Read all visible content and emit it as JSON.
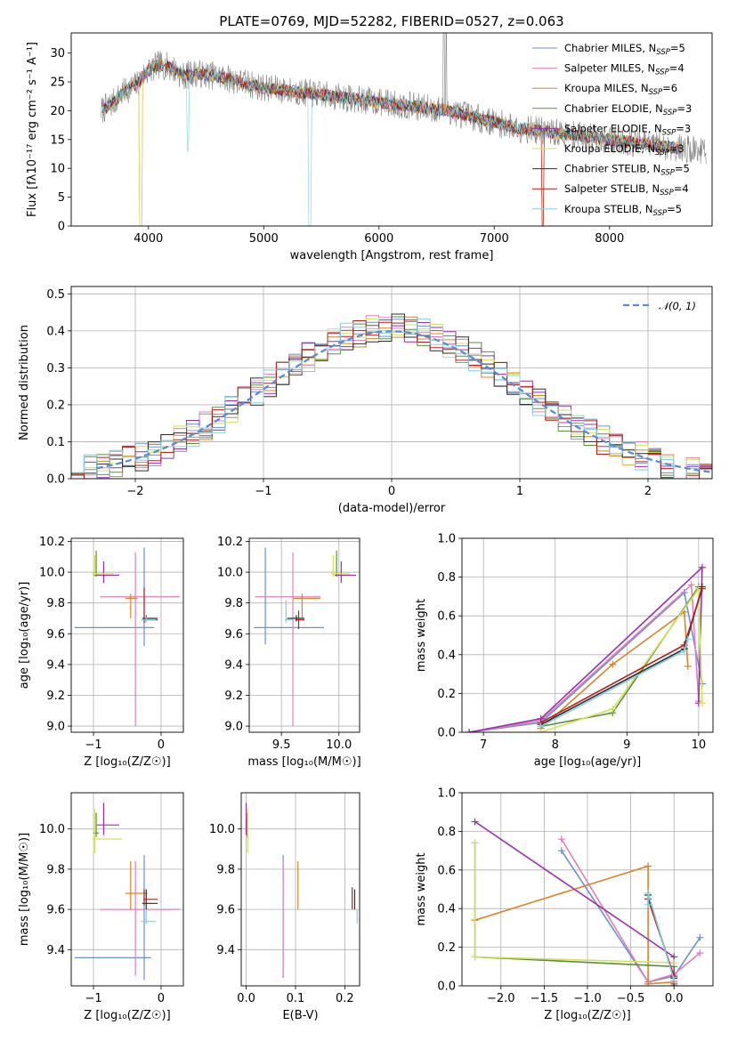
{
  "figure": {
    "title": "PLATE=0769, MJD=52282, FIBERID=0527, z=0.063"
  },
  "colors": {
    "palette": [
      "#6c8fd6",
      "#e07fba",
      "#d7842a",
      "#5a8f3c",
      "#9a2fb0",
      "#d4e157",
      "#2b2b2b",
      "#b51e1e",
      "#7fd0e0"
    ],
    "spectrum_data": "#808080",
    "normal_curve": "#5b8bd0",
    "grid": "#b0b0b0"
  },
  "chart_data": [
    {
      "id": "spectrum",
      "type": "line",
      "title": "PLATE=0769, MJD=52282, FIBERID=0527, z=0.063",
      "xlabel": "wavelength [Angstrom, rest frame]",
      "ylabel": "Flux [fλ10⁻¹⁷ erg cm⁻² s⁻¹ A⁻¹]",
      "xlim": [
        3330,
        8890
      ],
      "ylim": [
        0,
        33.5
      ],
      "xticks": [
        4000,
        5000,
        6000,
        7000,
        8000
      ],
      "yticks": [
        0,
        5,
        10,
        15,
        20,
        25,
        30
      ],
      "grid": false,
      "legend_position": "top-right",
      "continuum": {
        "x": [
          3590,
          3700,
          3800,
          3900,
          3950,
          4000,
          4100,
          4200,
          4300,
          4400,
          4600,
          4800,
          5000,
          5200,
          5400,
          5600,
          5800,
          6000,
          6200,
          6400,
          6600,
          6800,
          7000,
          7200,
          7400,
          7600,
          7800,
          8000,
          8200,
          8400,
          8600,
          8840
        ],
        "y": [
          20,
          21.5,
          23.5,
          24.5,
          26,
          27,
          28,
          27.5,
          26,
          26.5,
          26,
          25,
          24,
          23.5,
          23,
          22.5,
          22,
          21.5,
          21,
          20.5,
          20,
          19,
          18,
          17,
          16.5,
          16,
          15.5,
          15,
          14.5,
          14,
          13.5,
          13
        ]
      },
      "series": [
        {
          "name": "Chabrier MILES, Nₛₛₚ=5",
          "label": "Chabrier MILES, N",
          "sub": "SSP",
          "sup": "=5"
        },
        {
          "name": "Salpeter MILES, Nₛₛₚ=4",
          "label": "Salpeter MILES, N",
          "sub": "SSP",
          "sup": "=4"
        },
        {
          "name": "Kroupa MILES, Nₛₛₚ=6",
          "label": "Kroupa MILES, N",
          "sub": "SSP",
          "sup": "=6"
        },
        {
          "name": "Chabrier ELODIE, Nₛₛₚ=3",
          "label": "Chabrier ELODIE, N",
          "sub": "SSP",
          "sup": "=3"
        },
        {
          "name": "Salpeter ELODIE, Nₛₛₚ=3",
          "label": "Salpeter ELODIE, N",
          "sub": "SSP",
          "sup": "=3"
        },
        {
          "name": "Kroupa ELODIE, Nₛₛₚ=3",
          "label": "Kroupa ELODIE, N",
          "sub": "SSP",
          "sup": "=3"
        },
        {
          "name": "Chabrier STELIB, Nₛₛₚ=5",
          "label": "Chabrier STELIB, N",
          "sub": "SSP",
          "sup": "=5"
        },
        {
          "name": "Salpeter STELIB, Nₛₛₚ=4",
          "label": "Salpeter STELIB, N",
          "sub": "SSP",
          "sup": "=4"
        },
        {
          "name": "Kroupa STELIB, Nₛₛₚ=5",
          "label": "Kroupa STELIB, N",
          "sub": "SSP",
          "sup": "=5"
        }
      ]
    },
    {
      "id": "residuals",
      "type": "line",
      "xlabel": "(data-model)/error",
      "ylabel": "Normed distribution",
      "xlim": [
        -2.5,
        2.5
      ],
      "ylim": [
        0,
        0.52
      ],
      "xticks": [
        -2,
        -1,
        0,
        1,
        2
      ],
      "yticks": [
        0.0,
        0.1,
        0.2,
        0.3,
        0.4,
        0.5
      ],
      "grid": true,
      "legend_position": "top-right",
      "legend": "𝒩(0, 1)",
      "bin_width": 0.1
    },
    {
      "id": "age_vs_Z",
      "type": "scatter",
      "xlabel": "Z [log₁₀(Z/Z☉)]",
      "ylabel": "age  [log₁₀(age/yr)]",
      "xlim": [
        -1.33,
        0.33
      ],
      "ylim": [
        8.96,
        10.22
      ],
      "xticks": [
        -1,
        0
      ],
      "yticks": [
        9.0,
        9.2,
        9.4,
        9.6,
        9.8,
        10.0,
        10.2
      ],
      "grid": true,
      "points": [
        {
          "x": -0.25,
          "y": 9.64,
          "xlo": -1.28,
          "xhi": -0.1,
          "ylo": 9.52,
          "yhi": 10.16
        },
        {
          "x": -0.38,
          "y": 9.84,
          "xlo": -0.9,
          "xhi": 0.28,
          "ylo": 9.0,
          "yhi": 10.13
        },
        {
          "x": -0.45,
          "y": 9.83,
          "xlo": -0.53,
          "xhi": -0.35,
          "ylo": 9.7,
          "yhi": 9.86
        },
        {
          "x": -0.96,
          "y": 9.98,
          "xlo": -1.0,
          "xhi": -0.92,
          "ylo": 9.97,
          "yhi": 10.14
        },
        {
          "x": -0.85,
          "y": 9.98,
          "xlo": -0.95,
          "xhi": -0.62,
          "ylo": 9.93,
          "yhi": 10.07
        },
        {
          "x": -0.98,
          "y": 9.99,
          "xlo": -1.02,
          "xhi": -0.7,
          "ylo": 9.97,
          "yhi": 10.11
        },
        {
          "x": -0.22,
          "y": 9.7,
          "xlo": -0.28,
          "xhi": -0.05,
          "ylo": 9.68,
          "yhi": 9.72
        },
        {
          "x": -0.25,
          "y": 9.69,
          "xlo": -0.26,
          "xhi": -0.05,
          "ylo": 9.67,
          "yhi": 9.9
        },
        {
          "x": -0.22,
          "y": 9.69,
          "xlo": -0.3,
          "xhi": -0.08,
          "ylo": 9.67,
          "yhi": 9.71
        }
      ]
    },
    {
      "id": "age_vs_mass",
      "type": "scatter",
      "xlabel": "mass [log₁₀(M/M☉)]",
      "ylabel": "",
      "xlim": [
        9.22,
        10.18
      ],
      "ylim": [
        8.96,
        10.22
      ],
      "xticks": [
        9.5,
        10.0
      ],
      "yticks": [
        9.0,
        9.2,
        9.4,
        9.6,
        9.8,
        10.0,
        10.2
      ],
      "grid": true,
      "points": [
        {
          "x": 9.36,
          "y": 9.64,
          "xlo": 9.26,
          "xhi": 9.87,
          "ylo": 9.53,
          "yhi": 10.16
        },
        {
          "x": 9.6,
          "y": 9.84,
          "xlo": 9.27,
          "xhi": 9.84,
          "ylo": 9.0,
          "yhi": 10.13
        },
        {
          "x": 9.68,
          "y": 9.83,
          "xlo": 9.6,
          "xhi": 9.84,
          "ylo": 9.7,
          "yhi": 9.86
        },
        {
          "x": 9.98,
          "y": 9.98,
          "xlo": 9.96,
          "xhi": 10.0,
          "ylo": 9.97,
          "yhi": 10.14
        },
        {
          "x": 10.02,
          "y": 9.98,
          "xlo": 9.97,
          "xhi": 10.15,
          "ylo": 9.93,
          "yhi": 10.07
        },
        {
          "x": 9.95,
          "y": 9.99,
          "xlo": 9.93,
          "xhi": 10.1,
          "ylo": 9.97,
          "yhi": 10.11
        },
        {
          "x": 9.63,
          "y": 9.7,
          "xlo": 9.55,
          "xhi": 9.7,
          "ylo": 9.68,
          "yhi": 9.72
        },
        {
          "x": 9.65,
          "y": 9.69,
          "xlo": 9.62,
          "xhi": 9.7,
          "ylo": 9.63,
          "yhi": 9.75
        },
        {
          "x": 9.54,
          "y": 9.69,
          "xlo": 9.53,
          "xhi": 9.6,
          "ylo": 9.67,
          "yhi": 9.82
        }
      ]
    },
    {
      "id": "weight_vs_age",
      "type": "line",
      "xlabel": "age  [log₁₀(age/yr)]",
      "ylabel": "mass weight",
      "xlim": [
        6.7,
        10.2
      ],
      "ylim": [
        0,
        1.0
      ],
      "xticks": [
        7,
        8,
        9,
        10
      ],
      "yticks": [
        0.0,
        0.2,
        0.4,
        0.6,
        0.8,
        1.0
      ],
      "grid": true,
      "series": [
        {
          "x": [
            6.8,
            7.8,
            9.8,
            10.05
          ],
          "y": [
            0.0,
            0.05,
            0.72,
            0.25
          ]
        },
        {
          "x": [
            6.8,
            7.8,
            9.9,
            10.0
          ],
          "y": [
            0.0,
            0.06,
            0.76,
            0.16
          ]
        },
        {
          "x": [
            7.8,
            8.8,
            9.8,
            9.85
          ],
          "y": [
            0.02,
            0.35,
            0.62,
            0.34
          ]
        },
        {
          "x": [
            7.8,
            8.8,
            10.0
          ],
          "y": [
            0.03,
            0.1,
            0.75
          ]
        },
        {
          "x": [
            6.8,
            7.8,
            10.05,
            10.0
          ],
          "y": [
            0.0,
            0.07,
            0.85,
            0.15
          ]
        },
        {
          "x": [
            7.8,
            8.8,
            10.0,
            10.05
          ],
          "y": [
            0.0,
            0.12,
            0.74,
            0.15
          ]
        },
        {
          "x": [
            7.8,
            9.8,
            10.05
          ],
          "y": [
            0.04,
            0.43,
            0.75
          ]
        },
        {
          "x": [
            7.8,
            9.8,
            10.05
          ],
          "y": [
            0.05,
            0.45,
            0.74
          ]
        },
        {
          "x": [
            7.8,
            9.8,
            9.85
          ],
          "y": [
            0.03,
            0.42,
            0.48
          ]
        }
      ]
    },
    {
      "id": "mass_vs_Z",
      "type": "scatter",
      "xlabel": "Z [log₁₀(Z/Z☉)]",
      "ylabel": "mass [log₁₀(M/M☉)]",
      "xlim": [
        -1.33,
        0.33
      ],
      "ylim": [
        9.22,
        10.18
      ],
      "xticks": [
        -1,
        0
      ],
      "yticks": [
        9.4,
        9.6,
        9.8,
        10.0
      ],
      "grid": true,
      "points": [
        {
          "x": -0.25,
          "y": 9.36,
          "xlo": -1.28,
          "xhi": -0.15,
          "ylo": 9.25,
          "yhi": 9.87
        },
        {
          "x": -0.38,
          "y": 9.6,
          "xlo": -0.9,
          "xhi": 0.28,
          "ylo": 9.27,
          "yhi": 9.84
        },
        {
          "x": -0.45,
          "y": 9.68,
          "xlo": -0.53,
          "xhi": -0.2,
          "ylo": 9.6,
          "yhi": 9.84
        },
        {
          "x": -0.96,
          "y": 9.98,
          "xlo": -1.0,
          "xhi": -0.92,
          "ylo": 9.96,
          "yhi": 10.08
        },
        {
          "x": -0.85,
          "y": 10.02,
          "xlo": -0.95,
          "xhi": -0.62,
          "ylo": 9.97,
          "yhi": 10.13
        },
        {
          "x": -0.98,
          "y": 9.95,
          "xlo": -1.02,
          "xhi": -0.58,
          "ylo": 9.88,
          "yhi": 10.1
        },
        {
          "x": -0.22,
          "y": 9.63,
          "xlo": -0.28,
          "xhi": -0.05,
          "ylo": 9.6,
          "yhi": 9.7
        },
        {
          "x": -0.25,
          "y": 9.65,
          "xlo": -0.26,
          "xhi": -0.05,
          "ylo": 9.62,
          "yhi": 9.7
        },
        {
          "x": -0.22,
          "y": 9.54,
          "xlo": -0.3,
          "xhi": -0.08,
          "ylo": 9.53,
          "yhi": 9.6
        }
      ]
    },
    {
      "id": "mass_vs_EBV",
      "type": "scatter",
      "xlabel": "E(B-V)",
      "ylabel": "",
      "xlim": [
        -0.01,
        0.23
      ],
      "ylim": [
        9.22,
        10.18
      ],
      "xticks": [
        0.0,
        0.1,
        0.2
      ],
      "yticks": [
        9.4,
        9.6,
        9.8,
        10.0
      ],
      "grid": true,
      "points": [
        {
          "x": 0.075,
          "y": 9.56,
          "xlo": 0.075,
          "xhi": 0.075,
          "ylo": 9.26,
          "yhi": 9.87
        },
        {
          "x": 0.075,
          "y": 9.6,
          "xlo": 0.075,
          "xhi": 0.075,
          "ylo": 9.27,
          "yhi": 9.84
        },
        {
          "x": 0.105,
          "y": 9.68,
          "xlo": 0.105,
          "xhi": 0.105,
          "ylo": 9.6,
          "yhi": 9.84
        },
        {
          "x": 0.002,
          "y": 9.98,
          "xlo": 0.002,
          "xhi": 0.002,
          "ylo": 9.96,
          "yhi": 10.08
        },
        {
          "x": 0.0,
          "y": 10.02,
          "xlo": 0.0,
          "xhi": 0.0,
          "ylo": 9.97,
          "yhi": 10.13
        },
        {
          "x": 0.003,
          "y": 9.95,
          "xlo": 0.003,
          "xhi": 0.003,
          "ylo": 9.88,
          "yhi": 10.1
        },
        {
          "x": 0.22,
          "y": 9.63,
          "xlo": 0.22,
          "xhi": 0.22,
          "ylo": 9.6,
          "yhi": 9.7
        },
        {
          "x": 0.215,
          "y": 9.65,
          "xlo": 0.215,
          "xhi": 0.215,
          "ylo": 9.6,
          "yhi": 9.71
        },
        {
          "x": 0.225,
          "y": 9.56,
          "xlo": 0.225,
          "xhi": 0.225,
          "ylo": 9.53,
          "yhi": 9.6
        }
      ]
    },
    {
      "id": "weight_vs_Z",
      "type": "line",
      "xlabel": "Z [log₁₀(Z/Z☉)]",
      "ylabel": "mass weight",
      "xlim": [
        -2.45,
        0.45
      ],
      "ylim": [
        0,
        1.0
      ],
      "xticks": [
        -2.0,
        -1.5,
        -1.0,
        -0.5,
        0.0
      ],
      "yticks": [
        0.0,
        0.2,
        0.4,
        0.6,
        0.8,
        1.0
      ],
      "grid": true,
      "series": [
        {
          "x": [
            -1.3,
            -0.3,
            0.0,
            0.3
          ],
          "y": [
            0.7,
            0.02,
            0.05,
            0.25
          ]
        },
        {
          "x": [
            -1.3,
            -0.3,
            0.0,
            0.3
          ],
          "y": [
            0.76,
            0.02,
            0.06,
            0.17
          ]
        },
        {
          "x": [
            -2.3,
            -0.3,
            -0.3,
            0.0
          ],
          "y": [
            0.34,
            0.62,
            0.01,
            0.02
          ]
        },
        {
          "x": [
            -2.3,
            -2.3,
            0.0
          ],
          "y": [
            0.74,
            0.15,
            0.1
          ]
        },
        {
          "x": [
            -2.3,
            0.0,
            0.0
          ],
          "y": [
            0.85,
            0.15,
            0.01
          ]
        },
        {
          "x": [
            -2.3,
            -2.3,
            0.0
          ],
          "y": [
            0.74,
            0.15,
            0.12
          ]
        },
        {
          "x": [
            -0.3,
            0.0,
            0.0
          ],
          "y": [
            0.47,
            0.04,
            0.0
          ]
        },
        {
          "x": [
            -0.3,
            0.0,
            0.0
          ],
          "y": [
            0.45,
            0.05,
            0.0
          ]
        },
        {
          "x": [
            -0.3,
            -0.3,
            0.0
          ],
          "y": [
            0.42,
            0.48,
            0.03
          ]
        }
      ]
    }
  ]
}
